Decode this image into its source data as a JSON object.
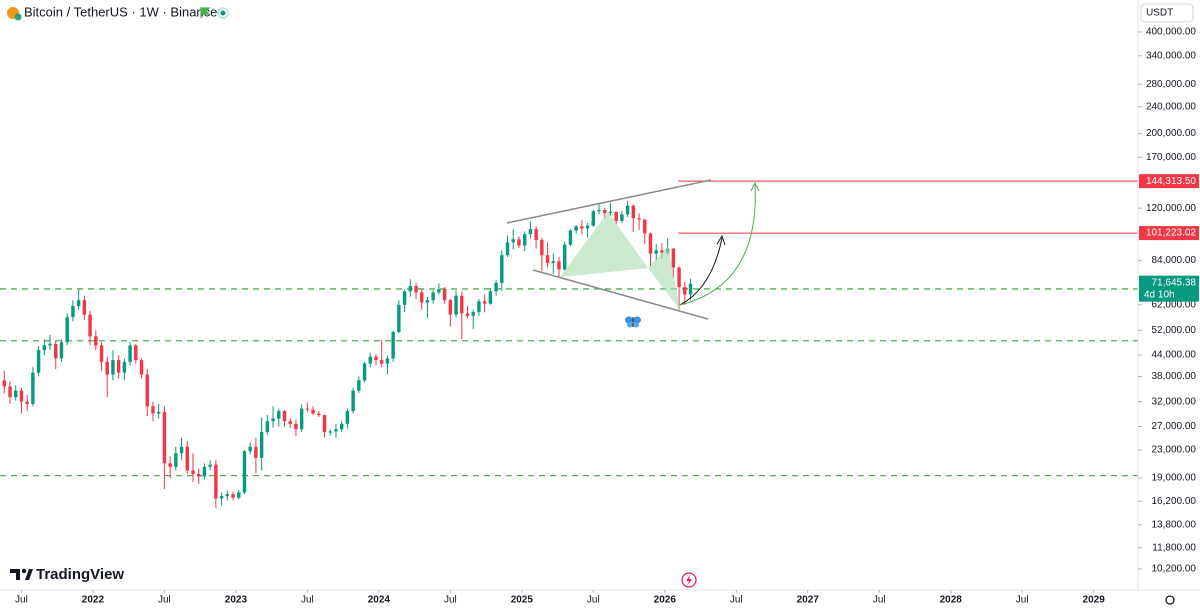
{
  "chart_data": {
    "type": "candlestick",
    "title": "Bitcoin / TetherUS · 1W · Binance",
    "currency": "USDT",
    "brand": "TradingView",
    "scale": "log",
    "up_color": "#089981",
    "down_color": "#f23645",
    "xlim": [
      2021.35,
      2029.31
    ],
    "xticks": [
      {
        "value": 2021.5,
        "label": "Jul"
      },
      2022,
      {
        "value": 2022.5,
        "label": "Jul"
      },
      2023,
      {
        "value": 2023.5,
        "label": "Jul"
      },
      2024,
      {
        "value": 2024.5,
        "label": "Jul"
      },
      2025,
      {
        "value": 2025.5,
        "label": "Jul"
      },
      2026,
      {
        "value": 2026.5,
        "label": "Jul"
      },
      2027,
      {
        "value": 2027.5,
        "label": "Jul"
      },
      2028,
      {
        "value": 2028.5,
        "label": "Jul"
      },
      2029
    ],
    "ylim": [
      8835,
      497600
    ],
    "yticks": [
      {
        "value": 400000,
        "label": "400,000.00"
      },
      {
        "value": 340000,
        "label": "340,000.00"
      },
      {
        "value": 280000,
        "label": "280,000.00"
      },
      {
        "value": 240000,
        "label": "240,000.00"
      },
      {
        "value": 200000,
        "label": "200,000.00"
      },
      {
        "value": 170000,
        "label": "170,000.00"
      },
      {
        "value": 120000,
        "label": "120,000.00"
      },
      {
        "value": 84000,
        "label": "84,000.00"
      },
      {
        "value": 62000,
        "label": "62,000.00"
      },
      {
        "value": 52000,
        "label": "52,000.00"
      },
      {
        "value": 44000,
        "label": "44,000.00"
      },
      {
        "value": 38000,
        "label": "38,000.00"
      },
      {
        "value": 32000,
        "label": "32,000.00"
      },
      {
        "value": 27000,
        "label": "27,000.00"
      },
      {
        "value": 23000,
        "label": "23,000.00"
      },
      {
        "value": 19000,
        "label": "19,000.00"
      },
      {
        "value": 16200,
        "label": "16,200.00"
      },
      {
        "value": 13800,
        "label": "13,800.00"
      },
      {
        "value": 11800,
        "label": "11,800.00"
      },
      {
        "value": 10200,
        "label": "10,200.00"
      }
    ],
    "support_levels": [
      69100,
      48500,
      19300
    ],
    "target_levels": [
      {
        "value": 144313.5,
        "label": "144,313.50"
      },
      {
        "value": 101223.02,
        "label": "101,223.02"
      }
    ],
    "last_price": {
      "value": 71645.38,
      "label": "71,645.38"
    },
    "countdown": "4d 10h",
    "x": [
      2021.38,
      2021.42,
      2021.46,
      2021.5,
      2021.54,
      2021.58,
      2021.62,
      2021.66,
      2021.7,
      2021.74,
      2021.78,
      2021.82,
      2021.86,
      2021.9,
      2021.94,
      2021.98,
      2022.02,
      2022.06,
      2022.1,
      2022.14,
      2022.18,
      2022.22,
      2022.26,
      2022.3,
      2022.34,
      2022.38,
      2022.42,
      2022.46,
      2022.5,
      2022.54,
      2022.58,
      2022.62,
      2022.66,
      2022.7,
      2022.74,
      2022.78,
      2022.82,
      2022.86,
      2022.9,
      2022.94,
      2022.98,
      2023.02,
      2023.06,
      2023.1,
      2023.14,
      2023.18,
      2023.22,
      2023.26,
      2023.3,
      2023.34,
      2023.38,
      2023.42,
      2023.46,
      2023.5,
      2023.54,
      2023.58,
      2023.62,
      2023.66,
      2023.7,
      2023.74,
      2023.78,
      2023.82,
      2023.86,
      2023.9,
      2023.94,
      2023.98,
      2024.02,
      2024.06,
      2024.1,
      2024.14,
      2024.18,
      2024.22,
      2024.26,
      2024.3,
      2024.34,
      2024.38,
      2024.42,
      2024.46,
      2024.5,
      2024.54,
      2024.58,
      2024.62,
      2024.66,
      2024.7,
      2024.74,
      2024.78,
      2024.82,
      2024.86,
      2024.9,
      2024.94,
      2024.98,
      2025.02,
      2025.06,
      2025.1,
      2025.14,
      2025.18,
      2025.22,
      2025.26,
      2025.3,
      2025.34,
      2025.38,
      2025.42,
      2025.46,
      2025.5,
      2025.54,
      2025.58,
      2025.62,
      2025.66,
      2025.7,
      2025.74,
      2025.78,
      2025.82,
      2025.86,
      2025.9,
      2025.94,
      2025.98,
      2026.02,
      2026.06,
      2026.1,
      2026.14,
      2026.18
    ],
    "ohlc": [
      [
        37000,
        39500,
        33800,
        35500
      ],
      [
        35500,
        36800,
        31500,
        33000
      ],
      [
        33000,
        35800,
        32200,
        34500
      ],
      [
        34500,
        35200,
        29500,
        32000
      ],
      [
        32000,
        33500,
        30000,
        31500
      ],
      [
        31500,
        40500,
        31000,
        39000
      ],
      [
        39000,
        46800,
        38000,
        45500
      ],
      [
        45500,
        49000,
        44000,
        47000
      ],
      [
        47000,
        50500,
        45500,
        47500
      ],
      [
        47500,
        48500,
        40000,
        43000
      ],
      [
        43000,
        49000,
        42000,
        48000
      ],
      [
        48000,
        58500,
        47000,
        57000
      ],
      [
        57000,
        64000,
        55500,
        61500
      ],
      [
        61500,
        69000,
        60000,
        64000
      ],
      [
        64000,
        66000,
        56000,
        58000
      ],
      [
        58000,
        59500,
        47000,
        50000
      ],
      [
        50000,
        52000,
        45500,
        47000
      ],
      [
        47000,
        48000,
        39500,
        42000
      ],
      [
        42000,
        43500,
        33000,
        38500
      ],
      [
        38500,
        45500,
        37000,
        42500
      ],
      [
        42500,
        44000,
        37500,
        39000
      ],
      [
        39000,
        43000,
        37000,
        42000
      ],
      [
        42000,
        48200,
        41000,
        47000
      ],
      [
        47000,
        47500,
        41500,
        42500
      ],
      [
        42500,
        43000,
        37500,
        38500
      ],
      [
        38500,
        40000,
        29000,
        31000
      ],
      [
        31000,
        32000,
        28000,
        29500
      ],
      [
        29500,
        31500,
        28500,
        29800
      ],
      [
        29800,
        31000,
        17600,
        21000
      ],
      [
        21000,
        22000,
        19000,
        20500
      ],
      [
        20500,
        23500,
        20000,
        22500
      ],
      [
        22500,
        25000,
        21500,
        23500
      ],
      [
        23500,
        24500,
        19500,
        20000
      ],
      [
        20000,
        22500,
        18500,
        19500
      ],
      [
        19500,
        20300,
        18200,
        19200
      ],
      [
        19200,
        21000,
        18800,
        20500
      ],
      [
        20500,
        21400,
        20000,
        20800
      ],
      [
        20800,
        21500,
        15500,
        16500
      ],
      [
        16500,
        17200,
        15700,
        16800
      ],
      [
        16800,
        17400,
        16300,
        17000
      ],
      [
        17000,
        17300,
        16300,
        16600
      ],
      [
        16600,
        17500,
        16400,
        17200
      ],
      [
        17200,
        23000,
        17000,
        22800
      ],
      [
        22800,
        24200,
        22300,
        23500
      ],
      [
        23500,
        25000,
        19600,
        21800
      ],
      [
        21800,
        28700,
        20000,
        26000
      ],
      [
        26000,
        29200,
        25500,
        28000
      ],
      [
        28000,
        31000,
        26800,
        28500
      ],
      [
        28500,
        30500,
        27000,
        30000
      ],
      [
        30000,
        30200,
        26900,
        28000
      ],
      [
        28000,
        28500,
        26700,
        27500
      ],
      [
        27500,
        28300,
        25300,
        26500
      ],
      [
        26500,
        31400,
        26000,
        30500
      ],
      [
        30500,
        31800,
        29800,
        30300
      ],
      [
        30300,
        31000,
        29200,
        29500
      ],
      [
        29500,
        30000,
        28800,
        29200
      ],
      [
        29200,
        29300,
        25100,
        26000
      ],
      [
        26000,
        26500,
        25400,
        26100
      ],
      [
        26100,
        27500,
        25000,
        26500
      ],
      [
        26500,
        28000,
        26000,
        27500
      ],
      [
        27500,
        30500,
        26600,
        30000
      ],
      [
        30000,
        35200,
        29500,
        34500
      ],
      [
        34500,
        38000,
        34000,
        37000
      ],
      [
        37000,
        42000,
        36500,
        41500
      ],
      [
        41500,
        44700,
        40500,
        43500
      ],
      [
        43500,
        44200,
        41000,
        42500
      ],
      [
        42500,
        48900,
        40500,
        41500
      ],
      [
        41500,
        43800,
        38500,
        43000
      ],
      [
        43000,
        52000,
        42000,
        51500
      ],
      [
        51500,
        64000,
        51000,
        62000
      ],
      [
        62000,
        69000,
        59000,
        68000
      ],
      [
        68000,
        73800,
        65500,
        70500
      ],
      [
        70500,
        72000,
        64500,
        67500
      ],
      [
        67500,
        69000,
        60000,
        63000
      ],
      [
        63000,
        65500,
        56500,
        64000
      ],
      [
        64000,
        68500,
        62500,
        67500
      ],
      [
        67500,
        71900,
        66500,
        69000
      ],
      [
        69000,
        70000,
        62500,
        64000
      ],
      [
        64000,
        64500,
        53500,
        58000
      ],
      [
        58000,
        68300,
        57000,
        66000
      ],
      [
        66000,
        68000,
        49000,
        58500
      ],
      [
        58500,
        61500,
        56500,
        57500
      ],
      [
        57500,
        60000,
        52500,
        59000
      ],
      [
        59000,
        64500,
        57500,
        63500
      ],
      [
        63500,
        66500,
        58900,
        62500
      ],
      [
        62500,
        69500,
        62000,
        68000
      ],
      [
        68000,
        73600,
        66000,
        72000
      ],
      [
        72000,
        89900,
        68000,
        87000
      ],
      [
        87000,
        99500,
        86000,
        95000
      ],
      [
        95000,
        104000,
        90500,
        97000
      ],
      [
        97000,
        99000,
        91500,
        93000
      ],
      [
        93000,
        102500,
        89500,
        100500
      ],
      [
        100500,
        109500,
        97500,
        104000
      ],
      [
        104000,
        106000,
        91000,
        96500
      ],
      [
        96500,
        98000,
        78000,
        87000
      ],
      [
        87000,
        95000,
        80000,
        82500
      ],
      [
        82500,
        88000,
        76600,
        83500
      ],
      [
        83500,
        86000,
        74500,
        79000
      ],
      [
        79000,
        95500,
        78500,
        93500
      ],
      [
        93500,
        104000,
        92500,
        103000
      ],
      [
        103000,
        107000,
        101000,
        106000
      ],
      [
        106000,
        110500,
        100500,
        104500
      ],
      [
        104500,
        108500,
        98200,
        106500
      ],
      [
        106500,
        118800,
        105500,
        117500
      ],
      [
        117500,
        123200,
        115000,
        118500
      ],
      [
        118500,
        120000,
        112000,
        116000
      ],
      [
        116000,
        124500,
        114000,
        117000
      ],
      [
        117000,
        117500,
        107300,
        110000
      ],
      [
        110000,
        117500,
        108500,
        115000
      ],
      [
        115000,
        126200,
        113000,
        122000
      ],
      [
        122000,
        123000,
        102000,
        112000
      ],
      [
        112000,
        116000,
        103500,
        111000
      ],
      [
        111000,
        111500,
        94000,
        101000
      ],
      [
        101000,
        101500,
        80600,
        88000
      ],
      [
        88000,
        94000,
        84000,
        90000
      ],
      [
        90000,
        94500,
        85000,
        88500
      ],
      [
        88500,
        97900,
        87000,
        91000
      ],
      [
        91000,
        91500,
        74500,
        80000
      ],
      [
        80000,
        80500,
        60000,
        70000
      ],
      [
        70000,
        72500,
        62000,
        66500
      ],
      [
        66500,
        74000,
        64000,
        71645.38
      ]
    ]
  }
}
